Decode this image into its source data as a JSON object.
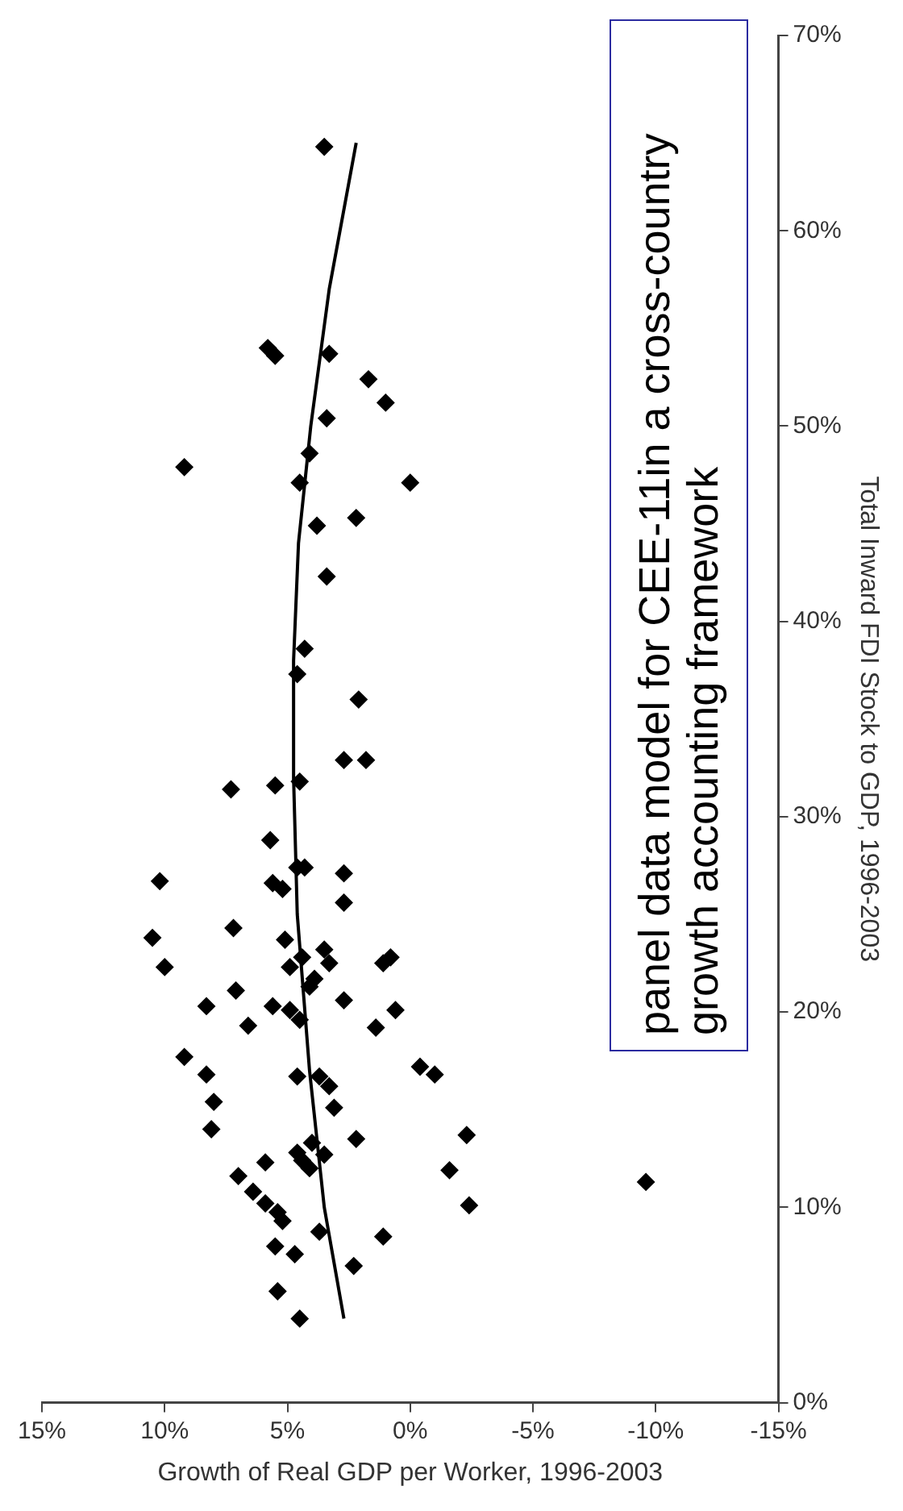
{
  "chart_data": {
    "type": "scatter",
    "xlabel": "Growth of Real GDP per Worker, 1996-2003",
    "ylabel": "Total Inward FDI Stock to GDP, 1996-2003",
    "annotations": [
      "panel data model for CEE-11in a cross-country growth accounting framework"
    ],
    "ylim": [
      0,
      70
    ],
    "yticks": [
      {
        "value": 0,
        "label": "0%"
      },
      {
        "value": 10,
        "label": "10%"
      },
      {
        "value": 20,
        "label": "20%"
      },
      {
        "value": 30,
        "label": "30%"
      },
      {
        "value": 40,
        "label": "40%"
      },
      {
        "value": 50,
        "label": "50%"
      },
      {
        "value": 60,
        "label": "60%"
      },
      {
        "value": 70,
        "label": "70%"
      }
    ],
    "xlim": [
      15,
      -15
    ],
    "xticks": [
      {
        "value": 15,
        "label": "15%"
      },
      {
        "value": 10,
        "label": "10%"
      },
      {
        "value": 5,
        "label": "5%"
      },
      {
        "value": 0,
        "label": "0%"
      },
      {
        "value": -5,
        "label": "-5%"
      },
      {
        "value": -10,
        "label": "-10%"
      },
      {
        "value": -15,
        "label": "-15%"
      }
    ],
    "grid": false,
    "legend": false,
    "marker": "diamond",
    "series": [
      {
        "type": "scatter",
        "color": "#000000",
        "values": [
          64.3,
          54.0,
          53.6,
          53.7,
          52.4,
          51.2,
          50.4,
          47.9,
          48.6,
          47.1,
          47.1,
          44.9,
          45.3,
          42.3,
          38.6,
          37.3,
          36.0,
          32.9,
          32.9,
          31.4,
          31.6,
          31.8,
          28.8,
          26.7,
          26.6,
          26.3,
          27.4,
          27.4,
          27.1,
          25.6,
          23.8,
          24.3,
          22.3,
          23.7,
          23.2,
          22.5,
          22.8,
          22.3,
          22.5,
          22.8,
          21.7,
          21.3,
          21.1,
          20.3,
          20.3,
          20.1,
          19.6,
          20.6,
          20.1,
          19.3,
          19.2,
          17.7,
          16.8,
          16.7,
          16.7,
          17.2,
          16.8,
          16.2,
          15.4,
          15.1,
          14.0,
          13.5,
          13.7,
          12.3,
          12.8,
          12.4,
          13.3,
          12.7,
          12.0,
          11.9,
          11.6,
          10.8,
          10.2,
          9.75,
          9.3,
          10.1,
          11.3,
          8.75,
          8.5,
          8.0,
          7.6,
          7.0,
          5.7,
          4.3
        ],
        "x": [
          3.5,
          5.8,
          5.5,
          3.3,
          1.7,
          1.0,
          3.4,
          9.2,
          4.1,
          4.5,
          0.0,
          3.8,
          2.2,
          3.4,
          4.3,
          4.6,
          2.1,
          2.7,
          1.8,
          7.3,
          5.5,
          4.5,
          5.7,
          10.2,
          5.6,
          5.2,
          4.6,
          4.3,
          2.7,
          2.7,
          10.5,
          7.2,
          10.0,
          5.1,
          3.5,
          3.3,
          4.4,
          4.9,
          1.1,
          0.8,
          3.9,
          4.1,
          7.1,
          8.3,
          5.6,
          4.9,
          4.5,
          2.7,
          0.6,
          6.6,
          1.4,
          9.2,
          8.3,
          4.6,
          3.7,
          -0.4,
          -1.0,
          3.3,
          8.0,
          3.1,
          8.1,
          2.2,
          -2.3,
          5.9,
          4.6,
          4.4,
          4.0,
          3.5,
          4.1,
          -1.6,
          7.0,
          6.4,
          5.9,
          5.4,
          5.2,
          -2.4,
          -9.6,
          3.7,
          1.1,
          5.5,
          4.7,
          2.3,
          5.4,
          4.5
        ]
      },
      {
        "type": "line",
        "color": "#000000",
        "marker": "none",
        "values": [
          4.3,
          10,
          17,
          25,
          32,
          38,
          44,
          50,
          57,
          64.5
        ],
        "x": [
          2.7,
          3.5,
          4.1,
          4.6,
          4.75,
          4.75,
          4.55,
          4.05,
          3.3,
          2.2
        ]
      }
    ]
  }
}
